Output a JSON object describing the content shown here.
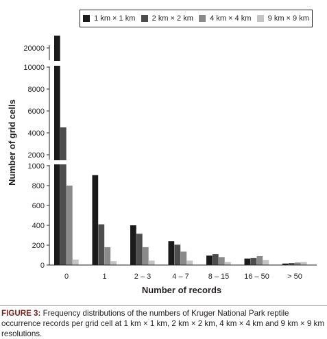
{
  "figure": {
    "caption_label": "FIGURE 3:",
    "caption_text": " Frequency distributions of the numbers of Kruger National Park reptile occurrence records per grid cell at 1 km × 1 km, 2 km × 2 km, 4 km × 4 km and 9 km × 9 km resolutions."
  },
  "chart_data": {
    "type": "bar",
    "xlabel": "Number of records",
    "ylabel": "Number of grid cells",
    "categories": [
      "0",
      "1",
      "2 – 3",
      "4 – 7",
      "8 – 15",
      "16 – 50",
      "> 50"
    ],
    "series": [
      {
        "name": "1 km × 1 km",
        "color": "#1a1a1a",
        "values": [
          20000,
          905,
          400,
          240,
          95,
          65,
          15
        ]
      },
      {
        "name": "2 km × 2 km",
        "color": "#4d4d4d",
        "values": [
          4500,
          410,
          315,
          205,
          110,
          70,
          20
        ]
      },
      {
        "name": "4 km × 4 km",
        "color": "#8a8a8a",
        "values": [
          800,
          180,
          180,
          135,
          80,
          90,
          25
        ]
      },
      {
        "name": "9 km × 9 km",
        "color": "#c4c4c4",
        "values": [
          55,
          40,
          45,
          45,
          30,
          50,
          30
        ]
      }
    ],
    "y_axis": {
      "broken": true,
      "lower_range": [
        0,
        1000
      ],
      "upper_range": [
        1000,
        10000
      ],
      "top_segment_range": [
        10000,
        20000
      ],
      "lower_ticks": [
        "0",
        "200",
        "400",
        "600",
        "800",
        "1000"
      ],
      "upper_ticks": [
        "2000",
        "4000",
        "6000",
        "8000",
        "10000"
      ],
      "top_ticks": [
        "20000"
      ]
    },
    "legend_position": "top",
    "grid": false
  }
}
